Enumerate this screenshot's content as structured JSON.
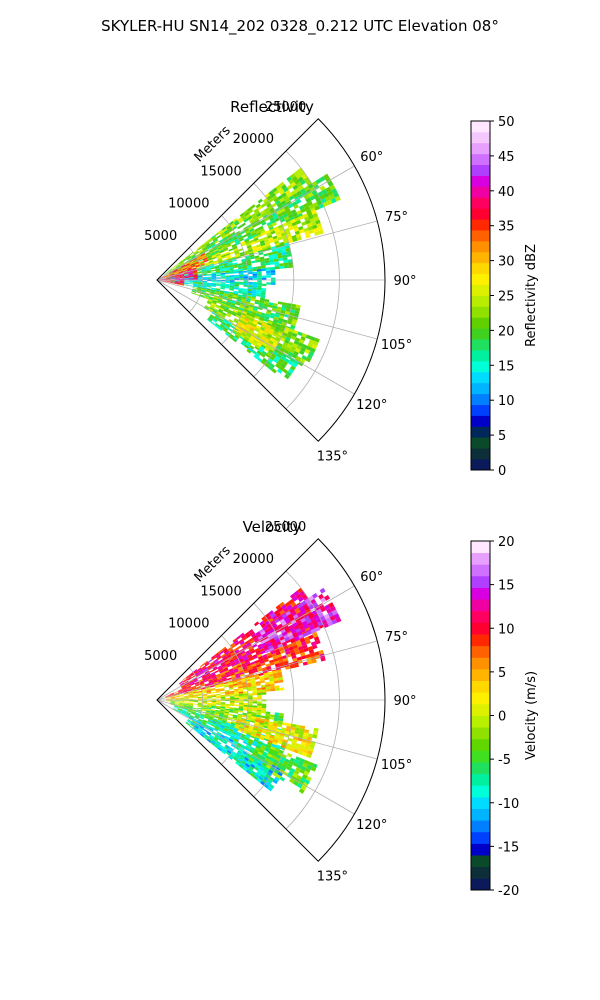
{
  "figure_title": "SKYLER-HU  SN14_202  0328_0.212 UTC Elevation 08°",
  "chart_data": [
    {
      "type": "heatmap",
      "subtype": "polar-sector",
      "title": "Reflectivity",
      "radial_label": "Meters",
      "radial_ticks": [
        5000,
        10000,
        15000,
        20000,
        25000
      ],
      "rlim": [
        0,
        25000
      ],
      "angle_ticks": [
        "60°",
        "75°",
        "90°",
        "105°",
        "120°",
        "135°"
      ],
      "angle_tick_values": [
        60,
        75,
        90,
        105,
        120,
        135
      ],
      "angle_range": [
        45,
        135
      ],
      "grid": true,
      "colorbar": {
        "label": "Reflectivity dBZ",
        "range": [
          0,
          50
        ],
        "ticks": [
          "0",
          "5",
          "10",
          "15",
          "20",
          "25",
          "30",
          "35",
          "40",
          "45",
          "50"
        ],
        "colors": [
          "#0a1a5a",
          "#0c2f3a",
          "#0a4a2a",
          "#00285a",
          "#0000c8",
          "#0040ff",
          "#0080ff",
          "#00b4ff",
          "#00dcff",
          "#00ffd8",
          "#00f0a0",
          "#20e060",
          "#40d020",
          "#60d000",
          "#90e000",
          "#b8ec00",
          "#dcf000",
          "#fff000",
          "#ffd800",
          "#ffb400",
          "#ff9000",
          "#ff6000",
          "#ff2800",
          "#ff0030",
          "#ff0060",
          "#f000a0",
          "#d800e0",
          "#b040ff",
          "#d070ff",
          "#e8a0ff",
          "#f4c8ff",
          "#ffe8ff"
        ]
      },
      "sectors": [
        {
          "az": [
            52,
            58
          ],
          "r": [
            1000,
            20000
          ],
          "value": 22
        },
        {
          "az": [
            58,
            66
          ],
          "r": [
            1500,
            22000
          ],
          "value": 20
        },
        {
          "az": [
            66,
            74
          ],
          "r": [
            1000,
            19000
          ],
          "value": 24
        },
        {
          "az": [
            74,
            84
          ],
          "r": [
            1000,
            15000
          ],
          "value": 18
        },
        {
          "az": [
            84,
            92
          ],
          "r": [
            1000,
            13000
          ],
          "value": 14
        },
        {
          "az": [
            92,
            100
          ],
          "r": [
            1500,
            12000
          ],
          "value": 16
        },
        {
          "az": [
            100,
            110
          ],
          "r": [
            4000,
            16000
          ],
          "value": 20
        },
        {
          "az": [
            110,
            120
          ],
          "r": [
            6000,
            19000
          ],
          "value": 22
        },
        {
          "az": [
            120,
            128
          ],
          "r": [
            7000,
            18000
          ],
          "value": 18
        },
        {
          "az": [
            60,
            72
          ],
          "r": [
            0,
            6000
          ],
          "value": 34
        },
        {
          "az": [
            72,
            90
          ],
          "r": [
            0,
            4500
          ],
          "value": 38
        },
        {
          "az": [
            90,
            102
          ],
          "r": [
            0,
            3000
          ],
          "value": 36
        },
        {
          "az": [
            112,
            124
          ],
          "r": [
            10000,
            15000
          ],
          "value": 26
        }
      ]
    },
    {
      "type": "heatmap",
      "subtype": "polar-sector",
      "title": "Velocity",
      "radial_label": "Meters",
      "radial_ticks": [
        5000,
        10000,
        15000,
        20000,
        25000
      ],
      "rlim": [
        0,
        25000
      ],
      "angle_ticks": [
        "60°",
        "75°",
        "90°",
        "105°",
        "120°",
        "135°"
      ],
      "angle_tick_values": [
        60,
        75,
        90,
        105,
        120,
        135
      ],
      "angle_range": [
        45,
        135
      ],
      "grid": true,
      "colorbar": {
        "label": "Velocity (m/s)",
        "range": [
          -20,
          20
        ],
        "ticks": [
          "-20",
          "-15",
          "-10",
          "-5",
          "0",
          "5",
          "10",
          "15",
          "20"
        ],
        "colors": [
          "#0a1a5a",
          "#0c2f3a",
          "#0a4a2a",
          "#0000c8",
          "#0040ff",
          "#0080ff",
          "#00b4ff",
          "#00dcff",
          "#00ffd8",
          "#00f0a0",
          "#20e060",
          "#40e020",
          "#60d800",
          "#90e000",
          "#b8f000",
          "#dcf000",
          "#fff000",
          "#ffd800",
          "#ffb400",
          "#ff9000",
          "#ff6000",
          "#ff2800",
          "#ff0030",
          "#ff0060",
          "#f000a0",
          "#d800e0",
          "#b040ff",
          "#d070ff",
          "#e8a0ff",
          "#ffe8ff"
        ]
      },
      "sectors": [
        {
          "az": [
            52,
            66
          ],
          "r": [
            3000,
            20000
          ],
          "value": 11
        },
        {
          "az": [
            66,
            76
          ],
          "r": [
            1000,
            19000
          ],
          "value": 9
        },
        {
          "az": [
            76,
            86
          ],
          "r": [
            1000,
            14000
          ],
          "value": 3
        },
        {
          "az": [
            86,
            96
          ],
          "r": [
            1000,
            12000
          ],
          "value": 0
        },
        {
          "az": [
            96,
            108
          ],
          "r": [
            1500,
            14000
          ],
          "value": -3
        },
        {
          "az": [
            108,
            118
          ],
          "r": [
            2000,
            15000
          ],
          "value": -7
        },
        {
          "az": [
            118,
            128
          ],
          "r": [
            4000,
            16000
          ],
          "value": -9
        },
        {
          "az": [
            56,
            66
          ],
          "r": [
            13000,
            22000
          ],
          "value": 14
        },
        {
          "az": [
            100,
            110
          ],
          "r": [
            9000,
            18000
          ],
          "value": 2
        },
        {
          "az": [
            112,
            122
          ],
          "r": [
            12000,
            19000
          ],
          "value": -4
        }
      ]
    }
  ]
}
